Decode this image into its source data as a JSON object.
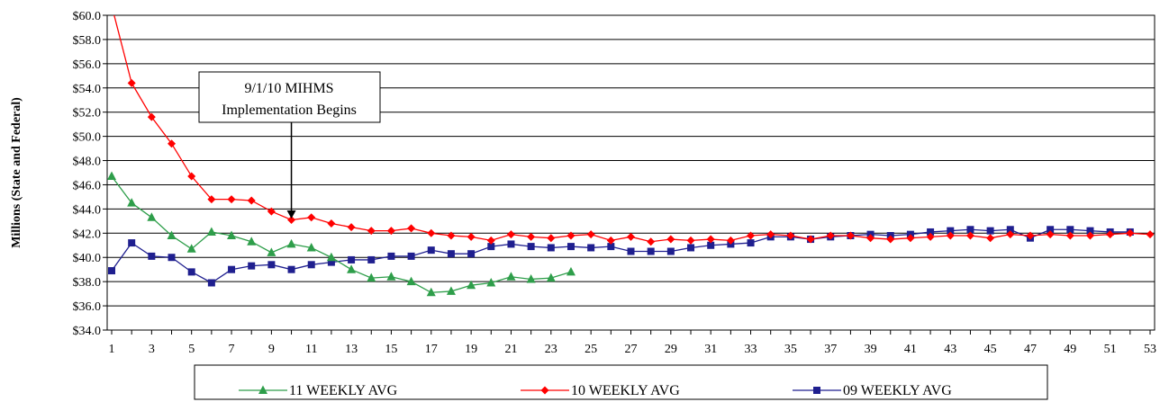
{
  "chart_data": {
    "type": "line",
    "ylabel": "Millions (State and Federal)",
    "ylim": [
      34.0,
      60.0
    ],
    "y_tick_step": 2.0,
    "y_tick_format": "$0.0",
    "x_range": [
      1,
      53
    ],
    "x_tick_labels": [
      "1",
      "3",
      "5",
      "7",
      "9",
      "11",
      "13",
      "15",
      "17",
      "19",
      "21",
      "23",
      "25",
      "27",
      "29",
      "31",
      "33",
      "35",
      "37",
      "39",
      "41",
      "43",
      "45",
      "47",
      "49",
      "51",
      "53"
    ],
    "grid": "horizontal",
    "legend_position": "bottom",
    "annotation": {
      "lines": [
        "9/1/10 MIHMS",
        "Implementation Begins"
      ],
      "arrow_x": 10
    },
    "series": [
      {
        "name": "11 WEEKLY AVG",
        "color": "#2e9e4a",
        "marker": "triangle",
        "values": [
          46.7,
          44.5,
          43.3,
          41.8,
          40.7,
          42.1,
          41.8,
          41.3,
          40.4,
          41.1,
          40.8,
          40.0,
          39.0,
          38.3,
          38.4,
          38.0,
          37.1,
          37.2,
          37.7,
          37.9,
          38.4,
          38.2,
          38.3,
          38.8
        ]
      },
      {
        "name": "10 WEEKLY AVG",
        "color": "#ff0000",
        "marker": "diamond",
        "first_value": 60.8,
        "values": [
          null,
          54.4,
          51.6,
          49.4,
          46.7,
          44.8,
          44.8,
          44.7,
          43.8,
          43.1,
          43.3,
          42.8,
          42.5,
          42.2,
          42.2,
          42.4,
          42.0,
          41.8,
          41.7,
          41.4,
          41.9,
          41.7,
          41.6,
          41.8,
          41.9,
          41.4,
          41.7,
          41.3,
          41.5,
          41.4,
          41.5,
          41.4,
          41.8,
          41.9,
          41.8,
          41.5,
          41.8,
          41.8,
          41.6,
          41.5,
          41.6,
          41.7,
          41.8,
          41.8,
          41.6,
          41.9,
          41.8,
          41.9,
          41.8,
          41.8,
          41.9,
          42.0,
          41.9
        ]
      },
      {
        "name": "09 WEEKLY AVG",
        "color": "#1f1f8f",
        "marker": "square",
        "values": [
          38.9,
          41.2,
          40.1,
          40.0,
          38.8,
          37.9,
          39.0,
          39.3,
          39.4,
          39.0,
          39.4,
          39.6,
          39.8,
          39.8,
          40.1,
          40.1,
          40.6,
          40.3,
          40.3,
          40.9,
          41.1,
          40.9,
          40.8,
          40.9,
          40.8,
          40.9,
          40.5,
          40.5,
          40.5,
          40.8,
          41.0,
          41.1,
          41.2,
          41.7,
          41.7,
          41.5,
          41.7,
          41.8,
          41.9,
          41.8,
          41.9,
          42.1,
          42.2,
          42.3,
          42.2,
          42.3,
          41.6,
          42.3,
          42.3,
          42.2,
          42.1,
          42.1
        ]
      }
    ]
  }
}
